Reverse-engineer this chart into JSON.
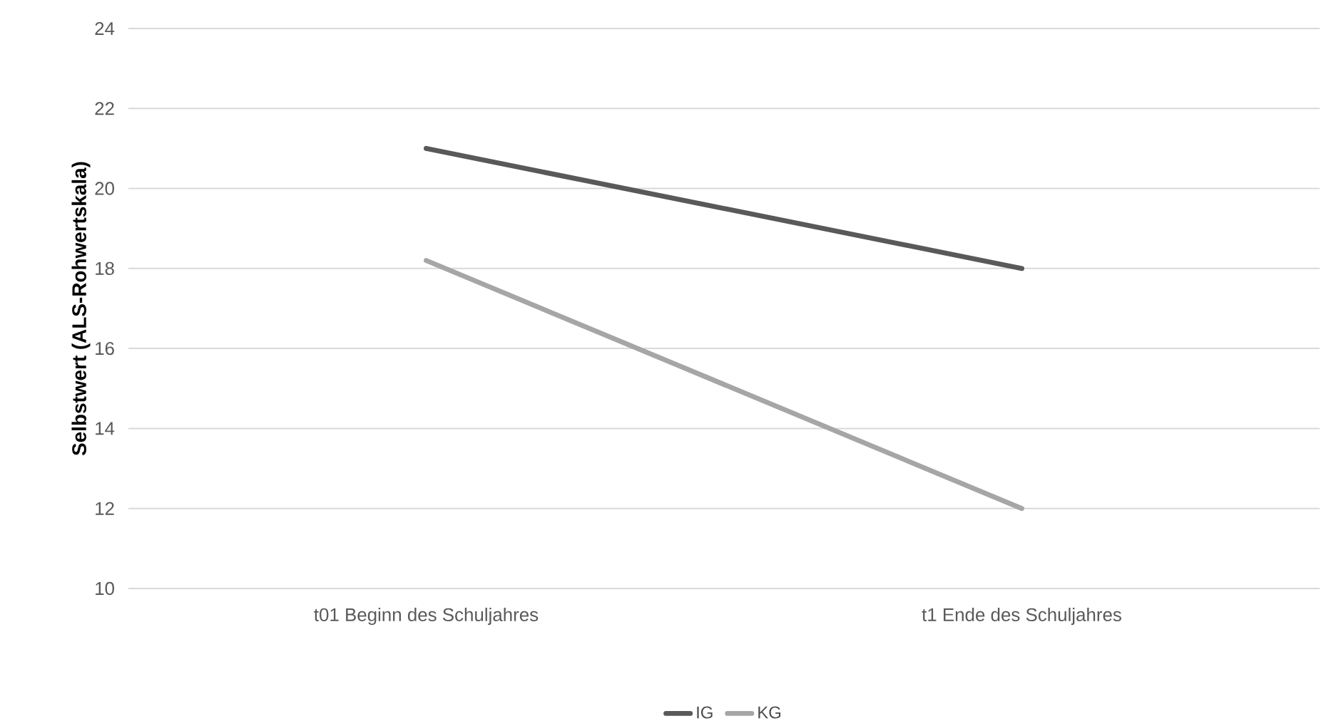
{
  "chart_data": {
    "type": "line",
    "ylabel": "Selbstwert (ALS-Rohwertskala)",
    "categories": [
      "t01 Beginn des Schuljahres",
      "t1 Ende des Schuljahres"
    ],
    "series": [
      {
        "name": "IG",
        "color": "#595959",
        "values": [
          21,
          18
        ]
      },
      {
        "name": "KG",
        "color": "#a6a6a6",
        "values": [
          18.2,
          12
        ]
      }
    ],
    "ylim": [
      10,
      24
    ],
    "yticks": [
      10,
      12,
      14,
      16,
      18,
      20,
      22,
      24
    ],
    "grid": "y",
    "legend": "bottom",
    "marker": "none",
    "line_style": "solid"
  }
}
